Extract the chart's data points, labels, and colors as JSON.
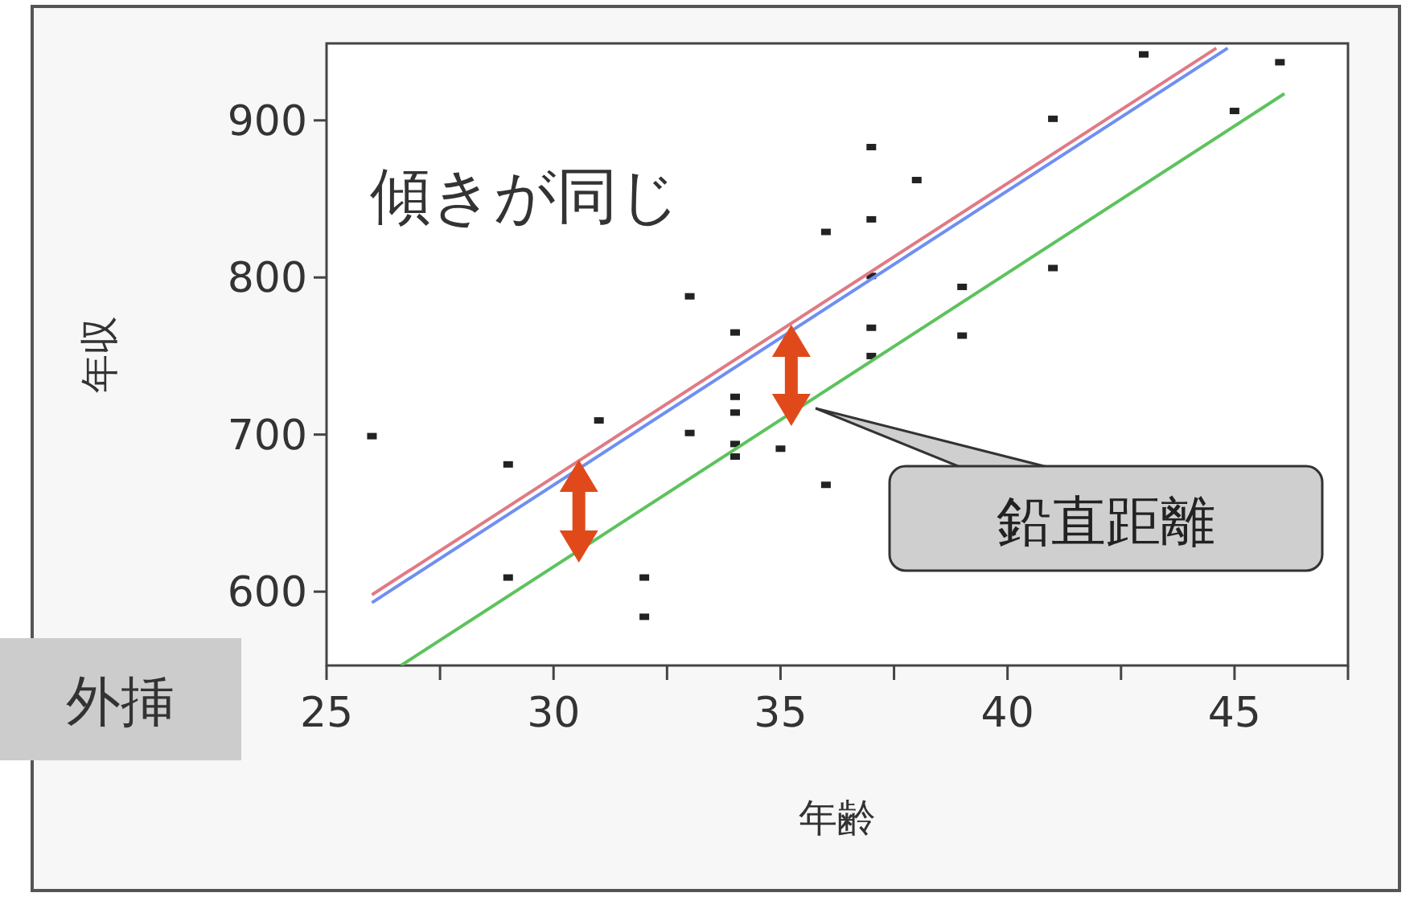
{
  "chart_data": {
    "type": "scatter",
    "xlabel": "年齢",
    "ylabel": "年収",
    "xlim": [
      25,
      47.5
    ],
    "ylim": [
      553,
      949
    ],
    "xticks": [
      25,
      {
        "value": 27.5,
        "label": null
      },
      30,
      {
        "value": 32.5,
        "label": null
      },
      35,
      {
        "value": 37.5,
        "label": null
      },
      40,
      {
        "value": 42.5,
        "label": null
      },
      45,
      {
        "value": 47.5,
        "label": null
      }
    ],
    "yticks": [
      600,
      700,
      800,
      900
    ],
    "series": [
      {
        "marker": "square",
        "color": "#222222",
        "x": [
          26,
          29,
          29,
          31,
          32,
          32,
          33,
          33,
          34,
          34,
          34,
          34,
          34,
          35,
          36,
          36,
          37,
          37,
          37,
          37,
          37,
          38,
          39,
          39,
          41,
          41,
          43,
          45,
          46
        ],
        "values": [
          699,
          681,
          609,
          709,
          609,
          584,
          788,
          701,
          765,
          724,
          714,
          694,
          686,
          691,
          829,
          668,
          883,
          837,
          801,
          768,
          750,
          862,
          794,
          763,
          901,
          806,
          942,
          906,
          937
        ]
      },
      {
        "type": "line",
        "color": "#e07a84",
        "x": [
          26,
          44.6
        ],
        "values": [
          598,
          946
        ]
      },
      {
        "type": "line",
        "color": "#6f8ff0",
        "x": [
          26,
          44.85
        ],
        "values": [
          593,
          946
        ]
      },
      {
        "type": "line",
        "color": "#5cc35c",
        "x": [
          26.64,
          46.1
        ],
        "values": [
          553,
          917
        ]
      }
    ],
    "annotations": [
      "傾きが同じ",
      "鉛直距離",
      "外挿"
    ]
  }
}
